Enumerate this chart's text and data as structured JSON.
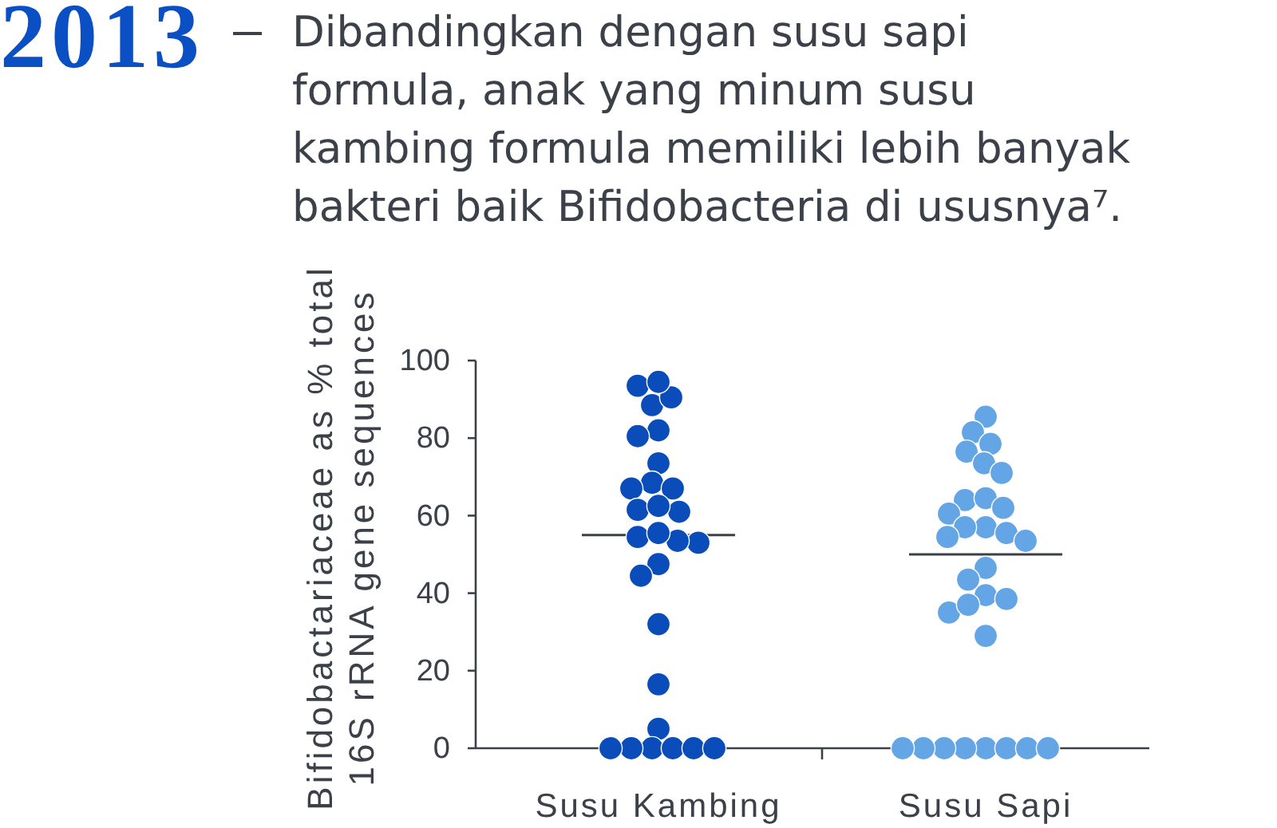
{
  "chart_data": {
    "type": "scatter",
    "title": "2013",
    "subtitle": "Dibandingkan dengan susu sapi\nformula, anak yang minum susu\nkambing formula memiliki lebih banyak\nbakteri baik Bifidobacteria di ususnya⁷.",
    "ylabel": "Bifidobactariaceae as % total\n16S rRNA gene sequences",
    "categories": [
      "Susu Kambing",
      "Susu Sapi"
    ],
    "ylim": [
      0,
      100
    ],
    "yticks": [
      0,
      20,
      40,
      60,
      80,
      100
    ],
    "marker": "circle",
    "series": [
      {
        "color": "#0a4dba",
        "x": [
          "Susu Kambing",
          "Susu Kambing",
          "Susu Kambing",
          "Susu Kambing",
          "Susu Kambing",
          "Susu Kambing",
          "Susu Kambing",
          "Susu Kambing",
          "Susu Kambing",
          "Susu Kambing",
          "Susu Kambing",
          "Susu Kambing",
          "Susu Kambing",
          "Susu Kambing",
          "Susu Kambing",
          "Susu Kambing",
          "Susu Kambing",
          "Susu Kambing",
          "Susu Kambing",
          "Susu Kambing",
          "Susu Kambing",
          "Susu Kambing",
          "Susu Kambing",
          "Susu Kambing",
          "Susu Kambing",
          "Susu Kambing",
          "Susu Kambing",
          "Susu Kambing"
        ],
        "values": [
          93.5,
          88.5,
          90.5,
          94.5,
          82,
          80.5,
          73.5,
          68.5,
          67,
          67,
          61,
          61.5,
          62.5,
          54.5,
          53,
          53.5,
          55.5,
          47.5,
          44.5,
          32,
          16.5,
          5,
          0,
          0,
          0,
          0,
          0,
          0
        ]
      },
      {
        "color": "#64a5e6",
        "x": [
          "Susu Sapi",
          "Susu Sapi",
          "Susu Sapi",
          "Susu Sapi",
          "Susu Sapi",
          "Susu Sapi",
          "Susu Sapi",
          "Susu Sapi",
          "Susu Sapi",
          "Susu Sapi",
          "Susu Sapi",
          "Susu Sapi",
          "Susu Sapi",
          "Susu Sapi",
          "Susu Sapi",
          "Susu Sapi",
          "Susu Sapi",
          "Susu Sapi",
          "Susu Sapi",
          "Susu Sapi",
          "Susu Sapi",
          "Susu Sapi",
          "Susu Sapi",
          "Susu Sapi",
          "Susu Sapi",
          "Susu Sapi",
          "Susu Sapi",
          "Susu Sapi",
          "Susu Sapi",
          "Susu Sapi"
        ],
        "values": [
          85.5,
          81.5,
          78.5,
          76.5,
          73.5,
          71,
          64,
          64.5,
          62,
          60.5,
          57,
          55.5,
          57,
          53.5,
          54.5,
          46.5,
          43.5,
          39.5,
          38.5,
          35,
          37,
          29,
          0,
          0,
          0,
          0,
          0,
          0,
          0,
          0
        ]
      }
    ],
    "ref_lines": [
      {
        "axis": "y",
        "value": 55,
        "color": "#3a3f48"
      },
      {
        "axis": "y",
        "value": 50,
        "color": "#3a3f48"
      }
    ]
  }
}
